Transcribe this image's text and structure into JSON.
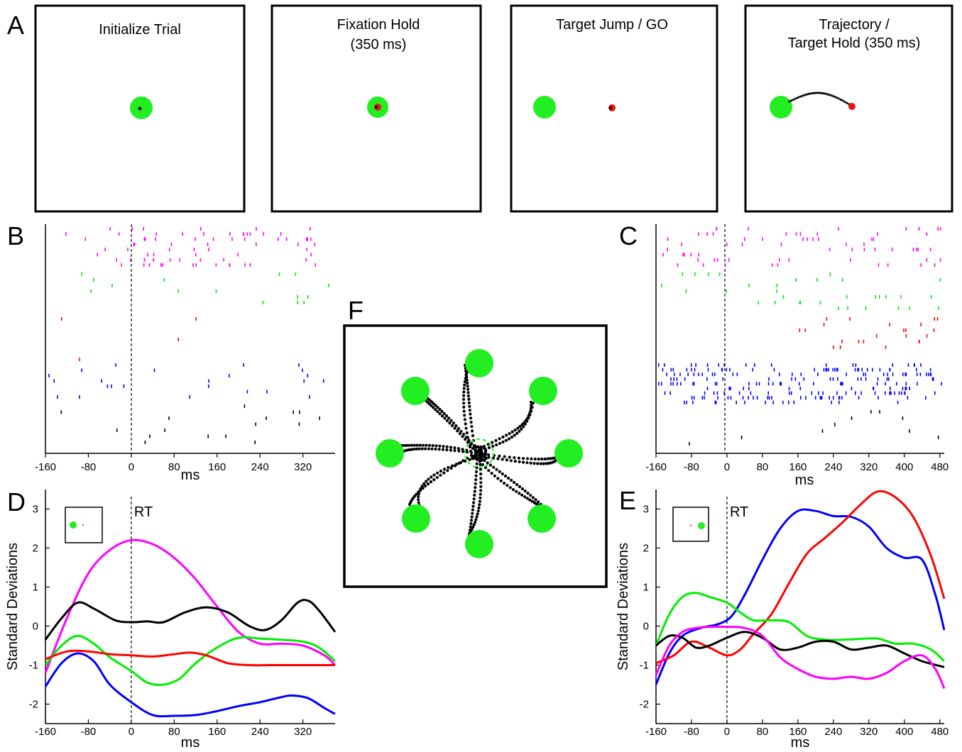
{
  "panel_letters": {
    "A": "A",
    "B": "B",
    "C": "C",
    "D": "D",
    "E": "E",
    "F": "F"
  },
  "panel_a": {
    "titles": [
      {
        "line1": "Initialize Trial",
        "line2": ""
      },
      {
        "line1": "Fixation Hold",
        "line2": "(350 ms)"
      },
      {
        "line1": "Target Jump / GO",
        "line2": ""
      },
      {
        "line1": "Trajectory /",
        "line2": "Target Hold (350 ms)"
      }
    ]
  },
  "colors": {
    "magenta": "#ff00ff",
    "green": "#00ee00",
    "red": "#ff0000",
    "blue": "#0000ff",
    "black": "#000000",
    "target_green": "#22ee22"
  },
  "panel_b": {
    "xlabel": "ms",
    "xticks": [
      "-160",
      "-80",
      "0",
      "80",
      "160",
      "240",
      "320"
    ],
    "xlim": [
      -160,
      380
    ]
  },
  "panel_c": {
    "xlabel": "ms",
    "xticks": [
      "-160",
      "-80",
      "0",
      "80",
      "160",
      "240",
      "320",
      "400",
      "480"
    ],
    "xlim": [
      -160,
      490
    ]
  },
  "panel_f": {
    "targets": 8
  },
  "chart_data": [
    {
      "type": "line",
      "panel": "D",
      "xlabel": "ms",
      "ylabel": "Standard Deviations",
      "annotation": "RT",
      "xlim": [
        -160,
        380
      ],
      "ylim": [
        -2.5,
        3.5
      ],
      "xticks": [
        "-160",
        "-80",
        "0",
        "80",
        "160",
        "240",
        "320"
      ],
      "yticks": [
        "-2",
        "-1",
        "0",
        "1",
        "2",
        "3"
      ],
      "series": [
        {
          "color": "magenta",
          "x": [
            -160,
            -120,
            -80,
            -40,
            0,
            40,
            80,
            120,
            160,
            200,
            240,
            280,
            320,
            360,
            380
          ],
          "y": [
            -1.2,
            0.2,
            1.35,
            1.95,
            2.2,
            2.1,
            1.75,
            1.2,
            0.5,
            -0.15,
            -0.45,
            -0.45,
            -0.5,
            -0.75,
            -1.0
          ]
        },
        {
          "color": "black",
          "x": [
            -160,
            -130,
            -100,
            -70,
            -30,
            0,
            30,
            60,
            100,
            140,
            180,
            220,
            250,
            280,
            310,
            330,
            350,
            380
          ],
          "y": [
            -0.35,
            0.2,
            0.6,
            0.45,
            0.15,
            0.1,
            0.12,
            0.1,
            0.35,
            0.48,
            0.35,
            0.0,
            -0.1,
            0.15,
            0.6,
            0.65,
            0.4,
            -0.15
          ]
        },
        {
          "color": "green",
          "x": [
            -160,
            -130,
            -100,
            -70,
            -40,
            0,
            30,
            60,
            90,
            120,
            160,
            200,
            240,
            280,
            320,
            350,
            380
          ],
          "y": [
            -1.0,
            -0.5,
            -0.25,
            -0.45,
            -0.8,
            -1.15,
            -1.45,
            -1.5,
            -1.35,
            -0.95,
            -0.55,
            -0.3,
            -0.32,
            -0.35,
            -0.4,
            -0.55,
            -0.9
          ]
        },
        {
          "color": "red",
          "x": [
            -160,
            -120,
            -80,
            -40,
            0,
            40,
            80,
            110,
            140,
            180,
            220,
            260,
            300,
            340,
            380
          ],
          "y": [
            -0.85,
            -0.65,
            -0.65,
            -0.72,
            -0.75,
            -0.78,
            -0.72,
            -0.68,
            -0.75,
            -0.95,
            -1.0,
            -1.0,
            -1.0,
            -1.0,
            -1.0
          ]
        },
        {
          "color": "blue",
          "x": [
            -160,
            -130,
            -100,
            -70,
            -40,
            0,
            40,
            80,
            120,
            160,
            200,
            240,
            280,
            300,
            330,
            360,
            380
          ],
          "y": [
            -1.55,
            -0.95,
            -0.7,
            -0.9,
            -1.5,
            -1.95,
            -2.28,
            -2.3,
            -2.28,
            -2.18,
            -2.05,
            -1.95,
            -1.82,
            -1.78,
            -1.85,
            -2.1,
            -2.25
          ]
        }
      ]
    },
    {
      "type": "line",
      "panel": "E",
      "xlabel": "ms",
      "ylabel": "Standard Deviations",
      "annotation": "RT",
      "xlim": [
        -160,
        490
      ],
      "ylim": [
        -2.5,
        3.5
      ],
      "xticks": [
        "-160",
        "-80",
        "0",
        "80",
        "160",
        "240",
        "320",
        "400",
        "480"
      ],
      "yticks": [
        "-2",
        "-1",
        "0",
        "1",
        "2",
        "3"
      ],
      "series": [
        {
          "color": "blue",
          "x": [
            -160,
            -130,
            -100,
            -60,
            -20,
            10,
            40,
            80,
            120,
            160,
            200,
            240,
            280,
            320,
            360,
            400,
            440,
            470,
            490
          ],
          "y": [
            -1.5,
            -0.7,
            -0.25,
            -0.05,
            0.05,
            0.25,
            0.8,
            1.7,
            2.5,
            2.95,
            2.95,
            2.82,
            2.8,
            2.55,
            2.0,
            1.75,
            1.7,
            0.8,
            -0.1
          ]
        },
        {
          "color": "red",
          "x": [
            -160,
            -120,
            -80,
            -40,
            0,
            30,
            60,
            100,
            140,
            180,
            220,
            260,
            300,
            340,
            380,
            420,
            460,
            490
          ],
          "y": [
            -0.95,
            -0.75,
            -0.4,
            -0.55,
            -0.75,
            -0.6,
            -0.2,
            0.3,
            1.1,
            1.85,
            2.25,
            2.65,
            3.1,
            3.45,
            3.3,
            2.8,
            1.8,
            0.7
          ]
        },
        {
          "color": "green",
          "x": [
            -160,
            -130,
            -100,
            -70,
            -40,
            0,
            30,
            60,
            100,
            140,
            180,
            220,
            260,
            300,
            340,
            380,
            420,
            460,
            490
          ],
          "y": [
            -0.5,
            0.3,
            0.75,
            0.85,
            0.75,
            0.6,
            0.35,
            0.15,
            0.15,
            0.1,
            -0.25,
            -0.35,
            -0.35,
            -0.33,
            -0.32,
            -0.45,
            -0.45,
            -0.6,
            -0.9
          ]
        },
        {
          "color": "black",
          "x": [
            -160,
            -130,
            -100,
            -70,
            -40,
            0,
            40,
            80,
            120,
            160,
            200,
            240,
            280,
            320,
            360,
            400,
            440,
            490
          ],
          "y": [
            -0.5,
            -0.25,
            -0.3,
            -0.55,
            -0.5,
            -0.3,
            -0.15,
            -0.3,
            -0.6,
            -0.55,
            -0.4,
            -0.4,
            -0.6,
            -0.55,
            -0.5,
            -0.7,
            -0.9,
            -1.05
          ]
        },
        {
          "color": "magenta",
          "x": [
            -160,
            -130,
            -100,
            -70,
            -40,
            0,
            40,
            80,
            120,
            160,
            200,
            240,
            280,
            320,
            360,
            400,
            440,
            470,
            490
          ],
          "y": [
            -1.25,
            -0.5,
            -0.15,
            -0.05,
            -0.02,
            -0.02,
            -0.05,
            -0.25,
            -0.8,
            -1.1,
            -1.3,
            -1.35,
            -1.3,
            -1.35,
            -1.2,
            -0.9,
            -0.75,
            -1.1,
            -1.6
          ]
        }
      ]
    }
  ]
}
